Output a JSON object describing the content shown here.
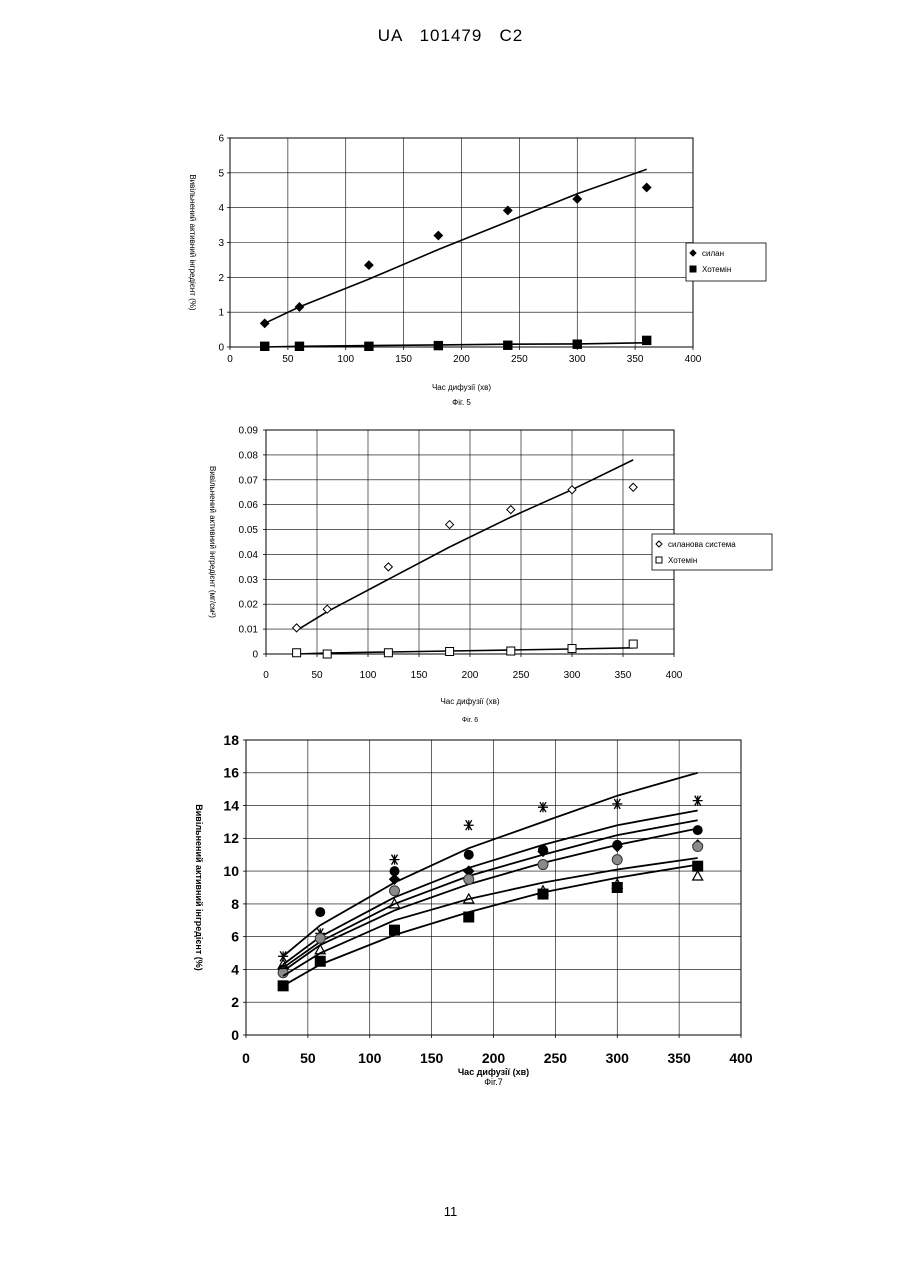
{
  "header": "UA   101479   C2",
  "page_number": "11",
  "chart_data": [
    {
      "type": "scatter",
      "caption": "Фіг. 5",
      "xlabel": "Час дифузії (хв)",
      "ylabel": "Вивільнений активний інгредієнт (%)",
      "xlim": [
        0,
        400
      ],
      "ylim": [
        0,
        6
      ],
      "xticks": [
        "0",
        "50",
        "100",
        "150",
        "200",
        "250",
        "300",
        "350",
        "400"
      ],
      "yticks": [
        "0",
        "1",
        "2",
        "3",
        "4",
        "5",
        "6"
      ],
      "grid": true,
      "legend_position": "right",
      "series": [
        {
          "name": "силан",
          "marker": "diamond-filled",
          "x": [
            30,
            60,
            120,
            180,
            240,
            300,
            360
          ],
          "y": [
            0.68,
            1.15,
            2.35,
            3.2,
            3.92,
            4.25,
            4.58
          ],
          "trend": [
            [
              30,
              0.68
            ],
            [
              60,
              1.15
            ],
            [
              120,
              1.95
            ],
            [
              180,
              2.8
            ],
            [
              240,
              3.6
            ],
            [
              300,
              4.4
            ],
            [
              360,
              5.1
            ]
          ]
        },
        {
          "name": "Хотемін",
          "marker": "square-filled",
          "x": [
            30,
            60,
            120,
            180,
            240,
            300,
            360
          ],
          "y": [
            0.02,
            0.02,
            0.02,
            0.04,
            0.05,
            0.08,
            0.19
          ],
          "trend": [
            [
              30,
              0.0
            ],
            [
              60,
              0.02
            ],
            [
              120,
              0.04
            ],
            [
              180,
              0.06
            ],
            [
              240,
              0.08
            ],
            [
              300,
              0.09
            ],
            [
              360,
              0.12
            ]
          ]
        }
      ]
    },
    {
      "type": "scatter",
      "caption": "Фіг. 6",
      "xlabel": "Час дифузії (хв)",
      "ylabel": "Вивільнений активний інгредієнт (мг/см²)",
      "xlim": [
        0,
        400
      ],
      "ylim": [
        0,
        0.09
      ],
      "xticks": [
        "0",
        "50",
        "100",
        "150",
        "200",
        "250",
        "300",
        "350",
        "400"
      ],
      "yticks": [
        "0",
        "0.01",
        "0.02",
        "0.03",
        "0.04",
        "0.05",
        "0.06",
        "0.07",
        "0.08",
        "0.09"
      ],
      "grid": true,
      "legend_position": "right",
      "series": [
        {
          "name": "силанова система",
          "marker": "diamond-open",
          "x": [
            30,
            60,
            120,
            180,
            240,
            300,
            360
          ],
          "y": [
            0.0105,
            0.018,
            0.035,
            0.052,
            0.058,
            0.066,
            0.067
          ],
          "trend": [
            [
              30,
              0.0095
            ],
            [
              60,
              0.017
            ],
            [
              120,
              0.03
            ],
            [
              180,
              0.043
            ],
            [
              240,
              0.055
            ],
            [
              300,
              0.066
            ],
            [
              360,
              0.078
            ]
          ]
        },
        {
          "name": "Хотемін",
          "marker": "square-open",
          "x": [
            30,
            60,
            120,
            180,
            240,
            300,
            360
          ],
          "y": [
            0.0005,
            0.0,
            0.0005,
            0.001,
            0.0012,
            0.0022,
            0.004
          ],
          "trend": [
            [
              30,
              0.0
            ],
            [
              60,
              0.0004
            ],
            [
              120,
              0.0008
            ],
            [
              180,
              0.0012
            ],
            [
              240,
              0.0016
            ],
            [
              300,
              0.002
            ],
            [
              360,
              0.0025
            ]
          ]
        }
      ]
    },
    {
      "type": "scatter",
      "caption": "Фіг.7",
      "xlabel": "Час дифузії (хв)",
      "ylabel": "Вивільнений активний інгредієнт (%)",
      "xlim": [
        0,
        400
      ],
      "ylim": [
        0,
        18
      ],
      "xticks": [
        "0",
        "50",
        "100",
        "150",
        "200",
        "250",
        "300",
        "350",
        "400"
      ],
      "yticks": [
        "0",
        "2",
        "4",
        "6",
        "8",
        "10",
        "12",
        "14",
        "16",
        "18"
      ],
      "grid": true,
      "series": [
        {
          "marker": "asterisk",
          "x": [
            30,
            60,
            120,
            180,
            240,
            300,
            365
          ],
          "y": [
            4.8,
            6.2,
            10.7,
            12.8,
            13.9,
            14.1,
            14.3
          ],
          "trend": [
            [
              30,
              4.8
            ],
            [
              60,
              6.7
            ],
            [
              120,
              9.3
            ],
            [
              180,
              11.4
            ],
            [
              240,
              13.0
            ],
            [
              300,
              14.6
            ],
            [
              365,
              16.0
            ]
          ]
        },
        {
          "marker": "circle-filled",
          "x": [
            30,
            60,
            120,
            180,
            240,
            300,
            365
          ],
          "y": [
            4.0,
            7.5,
            10.0,
            11.0,
            11.3,
            11.6,
            12.5
          ],
          "trend": [
            [
              30,
              4.3
            ],
            [
              60,
              6.0
            ],
            [
              120,
              8.4
            ],
            [
              180,
              10.2
            ],
            [
              240,
              11.6
            ],
            [
              300,
              12.8
            ],
            [
              365,
              13.7
            ]
          ]
        },
        {
          "marker": "diamond-filled",
          "x": [
            30,
            60,
            120,
            180,
            240,
            300,
            365
          ],
          "y": [
            4.0,
            6.0,
            9.5,
            10.0,
            11.2,
            11.5,
            11.6
          ],
          "trend": [
            [
              30,
              4.1
            ],
            [
              60,
              5.7
            ],
            [
              120,
              8.0
            ],
            [
              180,
              9.7
            ],
            [
              240,
              11.0
            ],
            [
              300,
              12.2
            ],
            [
              365,
              13.1
            ]
          ]
        },
        {
          "marker": "circle-grey",
          "x": [
            30,
            60,
            120,
            180,
            240,
            300,
            365
          ],
          "y": [
            3.8,
            5.9,
            8.8,
            9.5,
            10.4,
            10.7,
            11.5
          ],
          "trend": [
            [
              30,
              3.9
            ],
            [
              60,
              5.5
            ],
            [
              120,
              7.6
            ],
            [
              180,
              9.2
            ],
            [
              240,
              10.5
            ],
            [
              300,
              11.6
            ],
            [
              365,
              12.6
            ]
          ]
        },
        {
          "marker": "triangle-open",
          "x": [
            30,
            60,
            120,
            180,
            240,
            300,
            365
          ],
          "y": [
            4.3,
            5.2,
            8.0,
            8.3,
            8.8,
            9.2,
            9.7
          ],
          "trend": [
            [
              30,
              3.6
            ],
            [
              60,
              5.0
            ],
            [
              120,
              7.0
            ],
            [
              180,
              8.3
            ],
            [
              240,
              9.3
            ],
            [
              300,
              10.1
            ],
            [
              365,
              10.8
            ]
          ]
        },
        {
          "marker": "square-filled",
          "x": [
            30,
            60,
            120,
            180,
            240,
            300,
            365
          ],
          "y": [
            3.0,
            4.5,
            6.4,
            7.2,
            8.6,
            9.0,
            10.3
          ],
          "trend": [
            [
              30,
              3.0
            ],
            [
              60,
              4.3
            ],
            [
              120,
              6.1
            ],
            [
              180,
              7.5
            ],
            [
              240,
              8.7
            ],
            [
              300,
              9.6
            ],
            [
              365,
              10.4
            ]
          ]
        }
      ]
    }
  ]
}
